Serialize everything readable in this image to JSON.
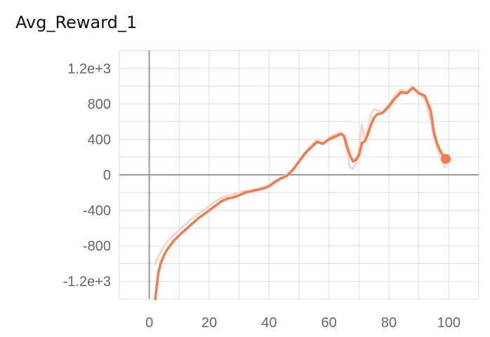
{
  "chart_data": {
    "type": "line",
    "title": "Avg_Reward_1",
    "xlabel": "",
    "ylabel": "",
    "xlim": [
      -10,
      110
    ],
    "ylim": [
      -1400,
      1400
    ],
    "xticks": [
      0,
      20,
      40,
      60,
      80,
      100
    ],
    "xtick_labels": [
      "0",
      "20",
      "40",
      "60",
      "80",
      "100"
    ],
    "yticks": [
      1200,
      800,
      400,
      0,
      -400,
      -800,
      -1200
    ],
    "ytick_labels": [
      "1.2e+3",
      "800",
      "400",
      "0",
      "-400",
      "-800",
      "-1.2e+3"
    ],
    "grid": true,
    "colors": {
      "smoothed": "#f07b4f",
      "raw": "#fbd5c7",
      "axis": "#999999",
      "grid": "#dddddd"
    },
    "series": [
      {
        "role": "raw",
        "x": [
          2,
          3,
          4,
          5,
          6,
          8,
          10,
          12,
          14,
          16,
          18,
          20,
          22,
          24,
          26,
          28,
          30,
          32,
          34,
          36,
          38,
          40,
          42,
          44,
          46,
          48,
          50,
          52,
          54,
          56,
          58,
          60,
          62,
          64,
          65,
          66,
          67,
          68,
          69,
          70,
          71,
          72,
          73,
          74,
          75,
          76,
          78,
          80,
          82,
          84,
          86,
          88,
          90,
          92,
          94,
          95,
          96,
          97,
          98,
          99
        ],
        "y": [
          -1000,
          -920,
          -860,
          -800,
          -750,
          -680,
          -620,
          -560,
          -500,
          -450,
          -400,
          -350,
          -300,
          -260,
          -240,
          -220,
          -200,
          -180,
          -170,
          -155,
          -140,
          -110,
          -60,
          -30,
          0,
          60,
          160,
          260,
          330,
          400,
          360,
          420,
          460,
          480,
          400,
          250,
          80,
          70,
          120,
          300,
          560,
          380,
          520,
          680,
          740,
          720,
          720,
          800,
          900,
          960,
          940,
          990,
          900,
          860,
          600,
          420,
          300,
          220,
          120,
          80
        ]
      },
      {
        "role": "smoothed",
        "x": [
          2,
          3,
          4,
          5,
          6,
          8,
          10,
          12,
          14,
          16,
          18,
          20,
          22,
          24,
          26,
          28,
          30,
          32,
          34,
          36,
          38,
          40,
          42,
          44,
          46,
          48,
          50,
          52,
          54,
          56,
          58,
          60,
          62,
          64,
          65,
          66,
          67,
          68,
          69,
          70,
          71,
          72,
          73,
          74,
          75,
          76,
          78,
          80,
          82,
          84,
          86,
          88,
          90,
          92,
          94,
          95,
          96,
          97,
          98,
          99
        ],
        "y": [
          -1400,
          -1100,
          -980,
          -900,
          -840,
          -750,
          -680,
          -620,
          -560,
          -500,
          -450,
          -400,
          -350,
          -300,
          -270,
          -255,
          -230,
          -200,
          -185,
          -170,
          -155,
          -130,
          -80,
          -40,
          -10,
          60,
          150,
          240,
          310,
          370,
          350,
          400,
          430,
          460,
          440,
          320,
          220,
          150,
          170,
          220,
          360,
          380,
          460,
          560,
          640,
          680,
          700,
          770,
          860,
          930,
          920,
          980,
          920,
          890,
          720,
          480,
          360,
          280,
          220,
          180
        ]
      }
    ],
    "end_marker": {
      "x": 99,
      "y": 180
    }
  }
}
